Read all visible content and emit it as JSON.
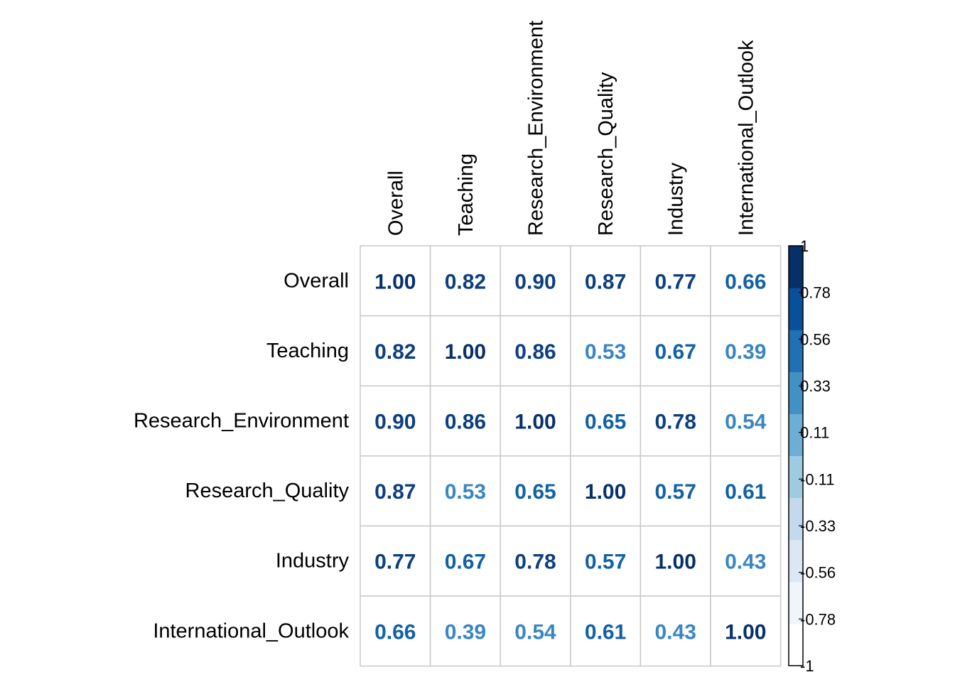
{
  "chart_data": {
    "type": "heatmap",
    "title": "",
    "variables": [
      "Overall",
      "Teaching",
      "Research_Environment",
      "Research_Quality",
      "Industry",
      "International_Outlook"
    ],
    "matrix": [
      [
        1.0,
        0.82,
        0.9,
        0.87,
        0.77,
        0.66
      ],
      [
        0.82,
        1.0,
        0.86,
        0.53,
        0.67,
        0.39
      ],
      [
        0.9,
        0.86,
        1.0,
        0.65,
        0.78,
        0.54
      ],
      [
        0.87,
        0.53,
        0.65,
        1.0,
        0.57,
        0.61
      ],
      [
        0.77,
        0.67,
        0.78,
        0.57,
        1.0,
        0.43
      ],
      [
        0.66,
        0.39,
        0.54,
        0.61,
        0.43,
        1.0
      ]
    ],
    "value_format": "2 decimals",
    "value_range": [
      -1,
      1
    ],
    "grid": true,
    "color_scale": {
      "ticks": [
        "1",
        "0.78",
        "0.56",
        "0.33",
        "0.11",
        "-0.11",
        "-0.33",
        "-0.56",
        "-0.78",
        "-1"
      ],
      "colors_low_to_high": [
        "#ffffff",
        "#f0f5fb",
        "#dce7f4",
        "#c4d9ed",
        "#9fcbe2",
        "#6daed5",
        "#4191c5",
        "#2070b3",
        "#084f9c",
        "#083068"
      ],
      "position": "right"
    }
  }
}
